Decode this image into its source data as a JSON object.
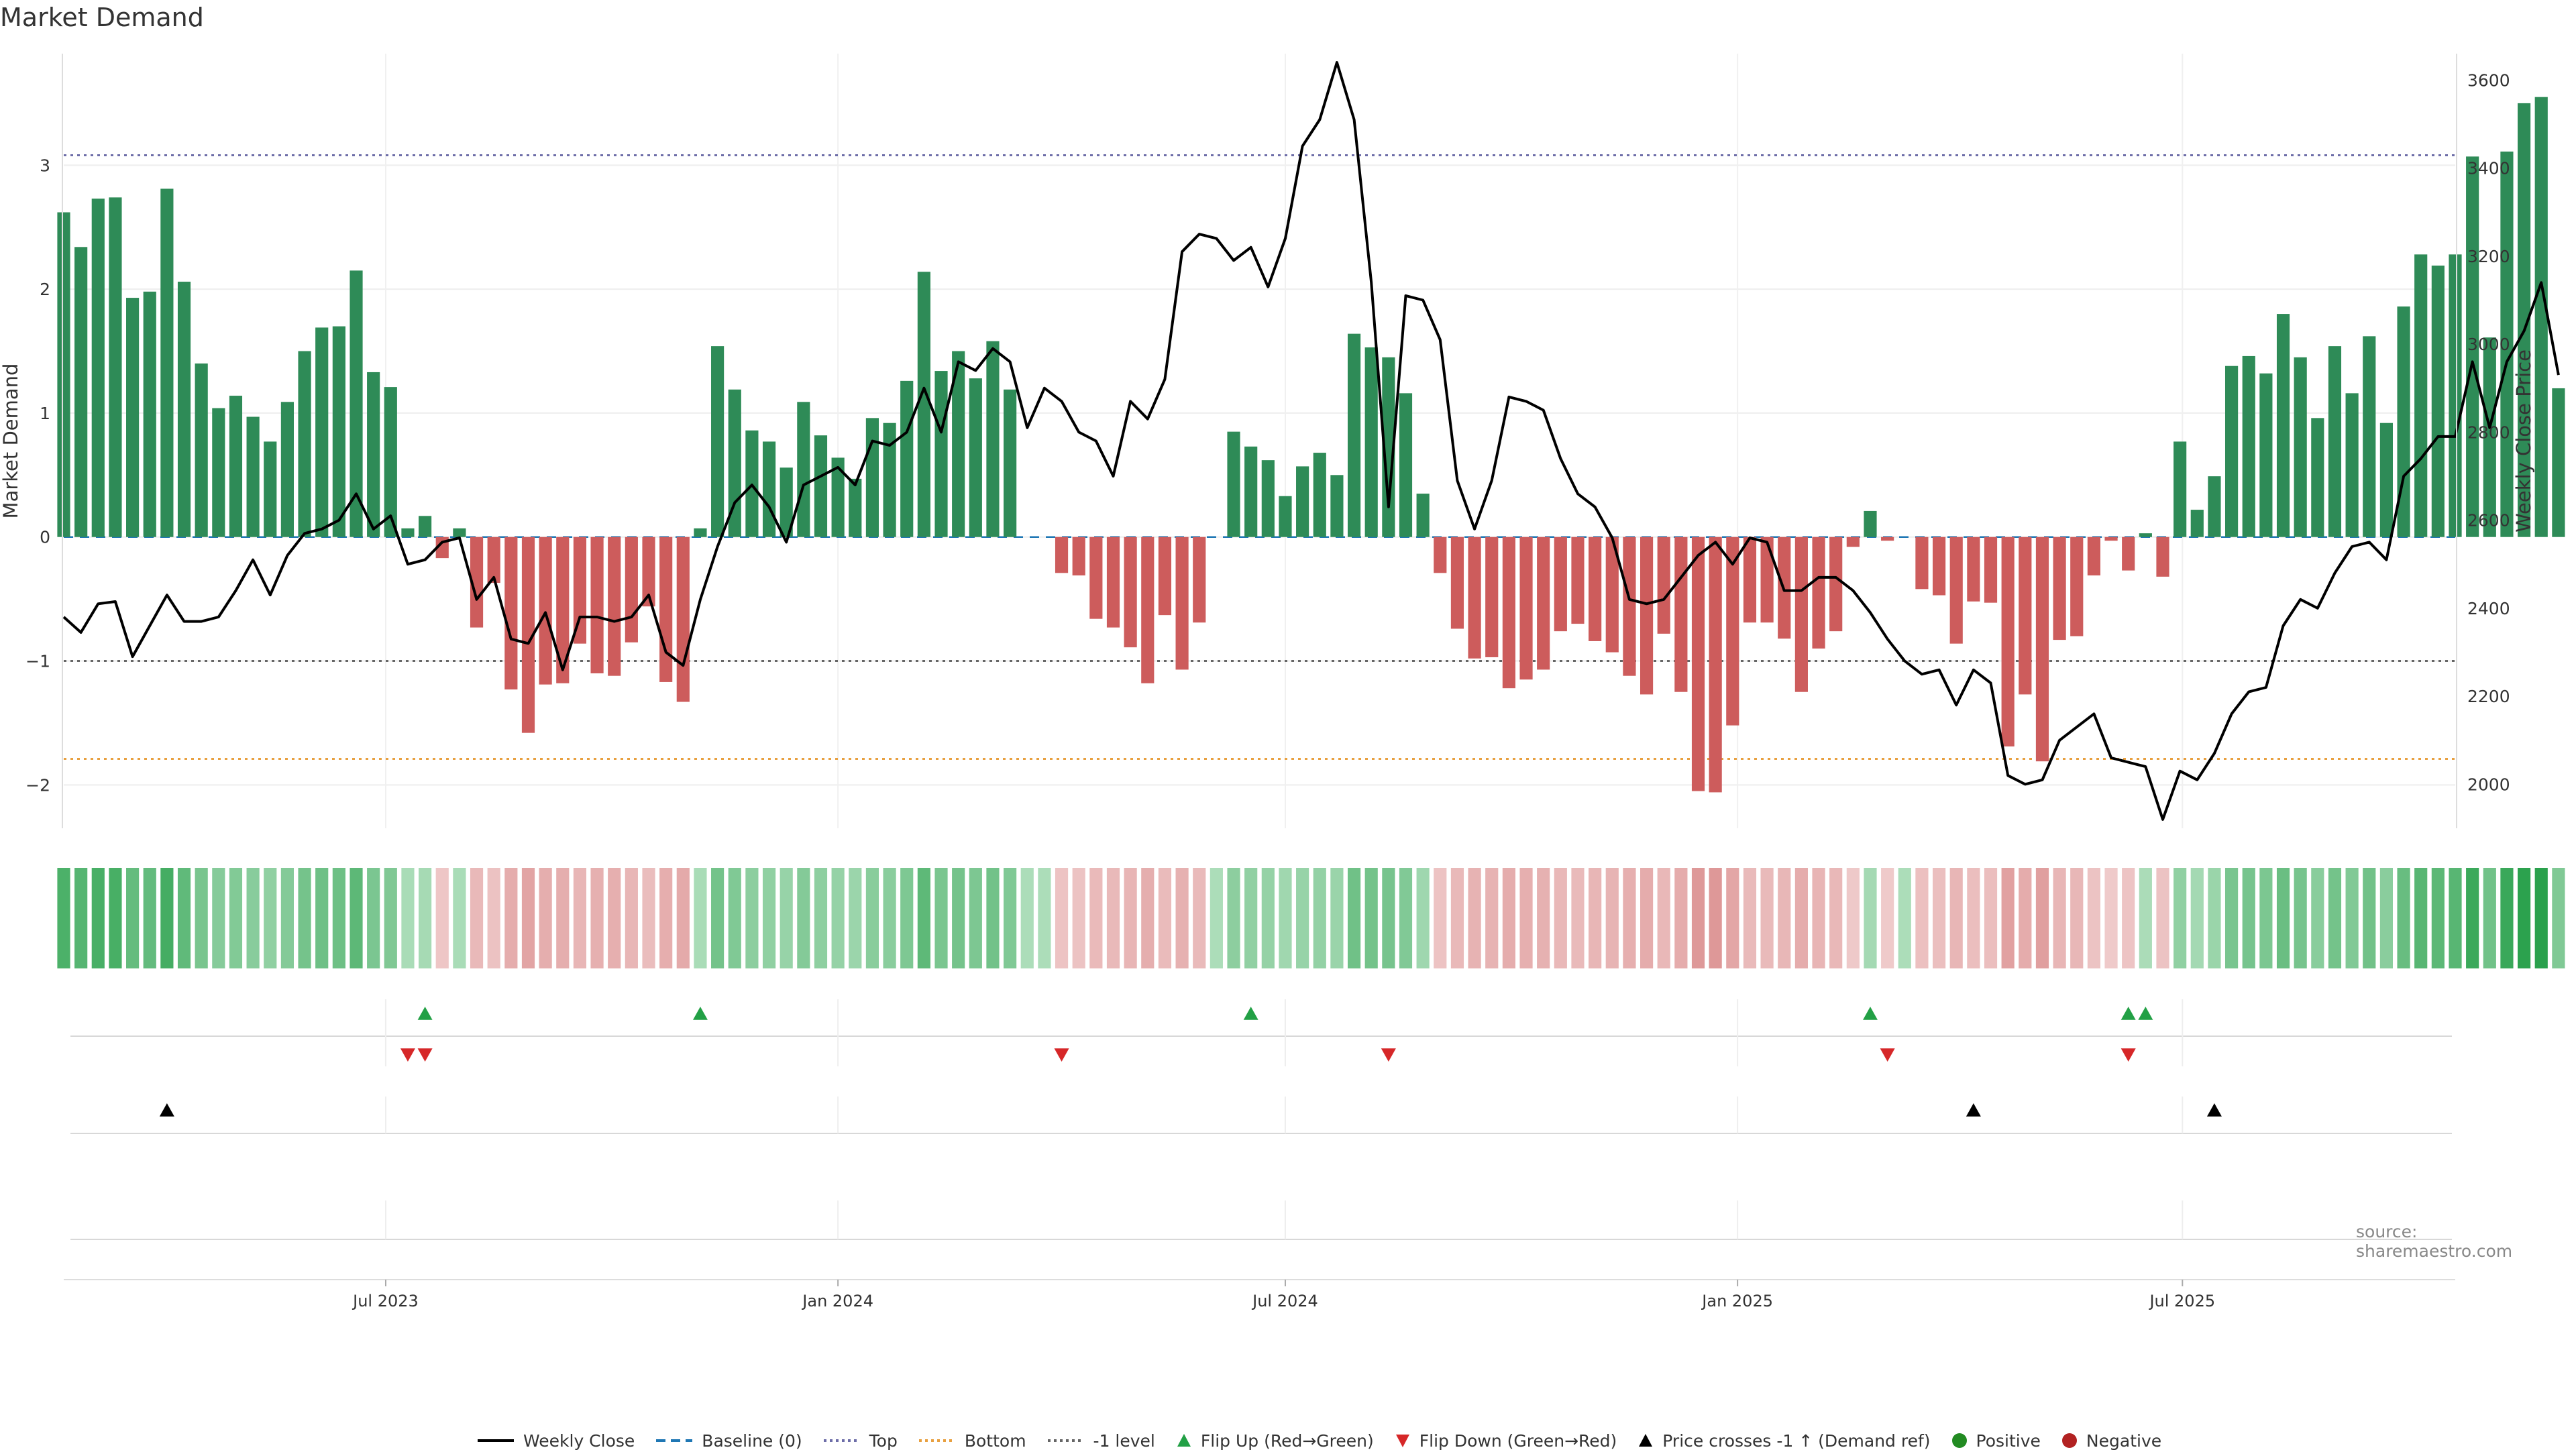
{
  "title": "Market Demand",
  "source_label": "source: sharemaestro.com",
  "colors": {
    "positive": "#2e8b57",
    "negative": "#cd5c5c",
    "price_line": "#000000",
    "baseline": "#1f77b4",
    "top": "#6d6da8",
    "bottom": "#e8a040",
    "minus1": "#666666",
    "flip_up": "#22a045",
    "flip_down": "#d62728",
    "crossing": "#000000",
    "legend_positive": "#228b22",
    "legend_negative": "#b22222"
  },
  "legend": [
    {
      "key": "weekly_close",
      "label": "Weekly Close",
      "icon": "line-solid-icon"
    },
    {
      "key": "baseline",
      "label": "Baseline (0)",
      "icon": "line-dashed-icon"
    },
    {
      "key": "top",
      "label": "Top",
      "icon": "line-dotted-icon"
    },
    {
      "key": "bottom",
      "label": "Bottom",
      "icon": "line-dotted-icon"
    },
    {
      "key": "minus1",
      "label": "-1 level",
      "icon": "line-dotted-icon"
    },
    {
      "key": "flip_up",
      "label": "Flip Up (Red→Green)",
      "icon": "triangle-up-icon"
    },
    {
      "key": "flip_down",
      "label": "Flip Down (Green→Red)",
      "icon": "triangle-down-icon"
    },
    {
      "key": "crossing",
      "label": "Price crosses -1 ↑ (Demand ref)",
      "icon": "triangle-up-icon"
    },
    {
      "key": "positive",
      "label": "Positive",
      "icon": "dot-icon"
    },
    {
      "key": "negative",
      "label": "Negative",
      "icon": "dot-icon"
    }
  ],
  "chart_data": {
    "type": "bar",
    "title": "Market Demand",
    "ylabel": "Market Demand",
    "y2label": "Weekly Close Price",
    "ylim": [
      -2.35,
      3.9
    ],
    "y2lim": [
      1900,
      3660
    ],
    "yticks": [
      3,
      2,
      1,
      0,
      -1,
      -2
    ],
    "ytick_labels": [
      "3",
      "2",
      "1",
      "0",
      "−1",
      "−2"
    ],
    "y2ticks": [
      3600,
      3400,
      3200,
      3000,
      2800,
      2600,
      2400,
      2200,
      2000
    ],
    "x_start": "2023-02-20",
    "x_end": "2025-10-20",
    "xticks": [
      {
        "date": "2023-07-01",
        "label": "Jul 2023"
      },
      {
        "date": "2024-01-01",
        "label": "Jan 2024"
      },
      {
        "date": "2024-07-01",
        "label": "Jul 2024"
      },
      {
        "date": "2025-01-01",
        "label": "Jan 2025"
      },
      {
        "date": "2025-07-01",
        "label": "Jul 2025"
      }
    ],
    "levels": {
      "baseline": 0,
      "top": 3.08,
      "bottom": -1.79,
      "minus1": -1.0
    },
    "grid": true,
    "legend_position": "bottom",
    "series": [
      {
        "name": "Market Demand",
        "type": "bar",
        "values": [
          2.62,
          2.34,
          2.73,
          2.74,
          1.93,
          1.98,
          2.81,
          2.06,
          1.4,
          1.04,
          1.14,
          0.97,
          0.77,
          1.09,
          1.5,
          1.69,
          1.7,
          2.15,
          1.33,
          1.21,
          0.07,
          0.17,
          -0.17,
          0.07,
          -0.73,
          -0.37,
          -1.23,
          -1.58,
          -1.19,
          -1.18,
          -0.86,
          -1.1,
          -1.12,
          -0.85,
          -0.56,
          -1.17,
          -1.33,
          0.07,
          1.54,
          1.19,
          0.86,
          0.77,
          0.56,
          1.09,
          0.82,
          0.64,
          0.47,
          0.96,
          0.92,
          1.26,
          2.14,
          1.34,
          1.5,
          1.28,
          1.58,
          1.19,
          0,
          0,
          -0.29,
          -0.31,
          -0.66,
          -0.73,
          -0.89,
          -1.18,
          -0.63,
          -1.07,
          -0.69,
          0,
          0.85,
          0.73,
          0.62,
          0.33,
          0.57,
          0.68,
          0.5,
          1.64,
          1.53,
          1.45,
          1.16,
          0.35,
          -0.29,
          -0.74,
          -0.98,
          -0.97,
          -1.22,
          -1.15,
          -1.07,
          -0.76,
          -0.7,
          -0.84,
          -0.93,
          -1.12,
          -1.27,
          -0.78,
          -1.25,
          -2.05,
          -2.06,
          -1.52,
          -0.69,
          -0.69,
          -0.82,
          -1.25,
          -0.9,
          -0.76,
          -0.08,
          0.21,
          -0.03,
          0,
          -0.42,
          -0.47,
          -0.86,
          -0.52,
          -0.53,
          -1.69,
          -1.27,
          -1.81,
          -0.83,
          -0.8,
          -0.31,
          -0.03,
          -0.27,
          0.03,
          -0.32,
          0.77,
          0.22,
          0.49,
          1.38,
          1.46,
          1.32,
          1.8,
          1.45,
          0.96,
          1.54,
          1.16,
          1.62,
          0.92,
          1.86,
          2.28,
          2.19,
          2.28,
          3.07,
          1.61,
          3.11,
          3.5,
          3.55,
          1.2
        ]
      },
      {
        "name": "Weekly Close",
        "type": "line",
        "y_axis": "right",
        "values": [
          2380,
          2345,
          2410,
          2415,
          2290,
          2360,
          2430,
          2370,
          2370,
          2380,
          2440,
          2510,
          2430,
          2520,
          2570,
          2580,
          2600,
          2660,
          2580,
          2610,
          2500,
          2510,
          2550,
          2560,
          2420,
          2470,
          2330,
          2320,
          2390,
          2260,
          2380,
          2380,
          2370,
          2380,
          2430,
          2300,
          2270,
          2420,
          2540,
          2640,
          2680,
          2630,
          2550,
          2680,
          2700,
          2720,
          2680,
          2780,
          2770,
          2800,
          2900,
          2800,
          2960,
          2940,
          2990,
          2960,
          2810,
          2900,
          2870,
          2800,
          2780,
          2700,
          2870,
          2830,
          2920,
          3210,
          3250,
          3240,
          3190,
          3220,
          3130,
          3240,
          3450,
          3510,
          3640,
          3510,
          3140,
          2630,
          3110,
          3100,
          3010,
          2690,
          2580,
          2690,
          2880,
          2870,
          2850,
          2740,
          2660,
          2630,
          2560,
          2420,
          2410,
          2420,
          2470,
          2520,
          2550,
          2500,
          2560,
          2550,
          2440,
          2440,
          2470,
          2470,
          2440,
          2390,
          2330,
          2280,
          2250,
          2260,
          2180,
          2260,
          2230,
          2020,
          2000,
          2010,
          2100,
          2130,
          2160,
          2060,
          2050,
          2040,
          1920,
          2030,
          2010,
          2070,
          2160,
          2210,
          2220,
          2360,
          2420,
          2400,
          2480,
          2540,
          2550,
          2510,
          2700,
          2740,
          2790,
          2790,
          2960,
          2810,
          2960,
          3030,
          3140,
          2930
        ]
      }
    ],
    "flip_up_dates": [
      "2023-07-17",
      "2023-11-06",
      "2024-06-17",
      "2025-02-24",
      "2025-06-09",
      "2025-06-16"
    ],
    "flip_down_dates": [
      "2023-07-10",
      "2023-07-17",
      "2024-04-01",
      "2024-08-12",
      "2025-03-03",
      "2025-06-09"
    ],
    "price_cross_dates": [
      "2023-04-03",
      "2025-04-07",
      "2025-07-14"
    ],
    "heat_strip": "weekly demand shading (green = positive, red = negative)"
  }
}
